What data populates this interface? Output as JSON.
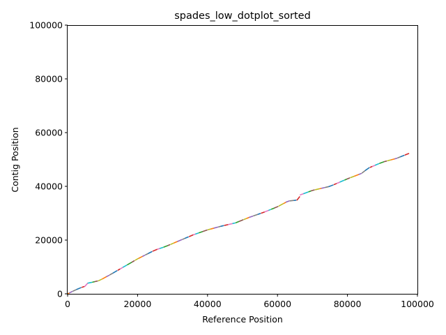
{
  "chart_data": {
    "type": "scatter",
    "title": "spades_low_dotplot_sorted",
    "xlabel": "Reference Position",
    "ylabel": "Contig Position",
    "xlim": [
      0,
      100000
    ],
    "ylim": [
      0,
      100000
    ],
    "xticks": [
      0,
      20000,
      40000,
      60000,
      80000,
      100000
    ],
    "yticks": [
      0,
      20000,
      40000,
      60000,
      80000,
      100000
    ],
    "xtick_labels": [
      "0",
      "20000",
      "40000",
      "60000",
      "80000",
      "100000"
    ],
    "ytick_labels": [
      "0",
      "20000",
      "40000",
      "60000",
      "80000",
      "100000"
    ],
    "grid": false,
    "legend": "none",
    "palette": [
      "#1f77b4",
      "#ff7f0e",
      "#2ca02c",
      "#d62728",
      "#9467bd",
      "#8c564b",
      "#e377c2",
      "#7f7f7f",
      "#bcbd22",
      "#17becf"
    ],
    "trend": [
      [
        0,
        0
      ],
      [
        2000,
        1300
      ],
      [
        4000,
        2400
      ],
      [
        5000,
        2800
      ],
      [
        5500,
        3900
      ],
      [
        7000,
        4300
      ],
      [
        9000,
        4900
      ],
      [
        12000,
        7000
      ],
      [
        16000,
        10000
      ],
      [
        20000,
        13000
      ],
      [
        25000,
        16300
      ],
      [
        28000,
        17600
      ],
      [
        32000,
        19800
      ],
      [
        36000,
        22000
      ],
      [
        40000,
        23800
      ],
      [
        44000,
        25200
      ],
      [
        48000,
        26400
      ],
      [
        52000,
        28500
      ],
      [
        56000,
        30300
      ],
      [
        60000,
        32400
      ],
      [
        63000,
        34500
      ],
      [
        65000,
        34800
      ],
      [
        66000,
        35000
      ],
      [
        66500,
        36800
      ],
      [
        70000,
        38500
      ],
      [
        75000,
        40000
      ],
      [
        80000,
        42800
      ],
      [
        84000,
        44800
      ],
      [
        86000,
        46800
      ],
      [
        90000,
        49000
      ],
      [
        94000,
        50400
      ],
      [
        97500,
        52200
      ]
    ]
  }
}
